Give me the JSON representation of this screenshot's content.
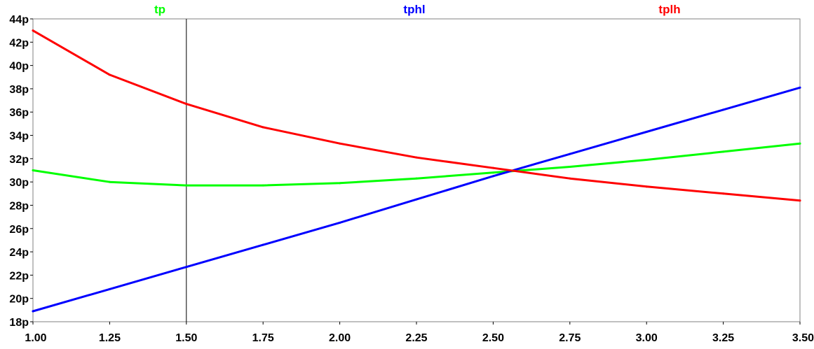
{
  "chart_data": {
    "type": "line",
    "title": "",
    "xlabel": "",
    "ylabel": "",
    "xlim": [
      1.0,
      3.5
    ],
    "ylim": [
      18,
      44
    ],
    "x_ticks": [
      1.0,
      1.25,
      1.5,
      1.75,
      2.0,
      2.25,
      2.5,
      2.75,
      3.0,
      3.25,
      3.5
    ],
    "x_tick_labels": [
      "1.00",
      "1.25",
      "1.50",
      "1.75",
      "2.00",
      "2.25",
      "2.50",
      "2.75",
      "3.00",
      "3.25",
      "3.50"
    ],
    "y_ticks": [
      18,
      20,
      22,
      24,
      26,
      28,
      30,
      32,
      34,
      36,
      38,
      40,
      42,
      44
    ],
    "y_tick_labels": [
      "18p",
      "20p",
      "22p",
      "24p",
      "26p",
      "28p",
      "30p",
      "32p",
      "34p",
      "36p",
      "38p",
      "40p",
      "42p",
      "44p"
    ],
    "cursor_x": 1.5,
    "grid": false,
    "legend": "top",
    "x": [
      1.0,
      1.25,
      1.5,
      1.75,
      2.0,
      2.25,
      2.5,
      2.75,
      3.0,
      3.25,
      3.5
    ],
    "series": [
      {
        "name": "tp",
        "color": "#00ff00",
        "values": [
          31.0,
          30.0,
          29.7,
          29.7,
          29.9,
          30.3,
          30.8,
          31.3,
          31.9,
          32.6,
          33.3
        ]
      },
      {
        "name": "tphl",
        "color": "#0000ff",
        "values": [
          18.9,
          20.8,
          22.7,
          24.6,
          26.5,
          28.5,
          30.5,
          32.4,
          34.3,
          36.2,
          38.1
        ]
      },
      {
        "name": "tplh",
        "color": "#ff0000",
        "values": [
          43.0,
          39.2,
          36.7,
          34.7,
          33.3,
          32.1,
          31.2,
          30.3,
          29.6,
          29.0,
          28.4
        ]
      }
    ]
  }
}
